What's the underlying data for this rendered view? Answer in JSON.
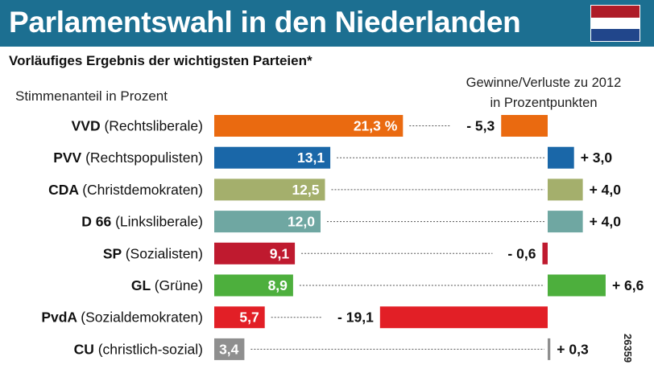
{
  "header": {
    "title": "Parlamentswahl in den Niederlanden",
    "flag_colors": [
      "#ae1c28",
      "#ffffff",
      "#21468b"
    ],
    "background": "#1c6f91"
  },
  "subtitle": "Vorläufiges Ergebnis der wichtigsten Parteien*",
  "left_header": "Stimmenanteil in Prozent",
  "right_header": {
    "line1": "Gewinne/Verluste zu 2012",
    "line2": "in Prozentpunkten"
  },
  "watermark": "26359",
  "chart_data": {
    "type": "bar",
    "title": "Parlamentswahl in den Niederlanden",
    "subtitle": "Vorläufiges Ergebnis der wichtigsten Parteien*",
    "xlabel": "",
    "ylabel": "",
    "categories": [
      "VVD",
      "PVV",
      "CDA",
      "D 66",
      "SP",
      "GL",
      "PvdA",
      "CU"
    ],
    "descriptions": [
      "(Rechtsliberale)",
      "(Rechtspopulisten)",
      "(Christdemokraten)",
      "(Linksliberale)",
      "(Sozialisten)",
      "(Grüne)",
      "(Sozialdemokraten)",
      "(christlich-sozial)"
    ],
    "colors": [
      "#ea6a10",
      "#1a67a8",
      "#a4af6c",
      "#6fa7a2",
      "#bf1a2f",
      "#4daf3d",
      "#e21f26",
      "#8f8f8f"
    ],
    "series": [
      {
        "name": "Stimmenanteil in Prozent",
        "values": [
          21.3,
          13.1,
          12.5,
          12.0,
          9.1,
          8.9,
          5.7,
          3.4
        ],
        "labels": [
          "21,3 %",
          "13,1",
          "12,5",
          "12,0",
          "9,1",
          "8,9",
          "5,7",
          "3,4"
        ]
      },
      {
        "name": "Gewinne/Verluste zu 2012 in Prozentpunkten",
        "values": [
          -5.3,
          3.0,
          4.0,
          4.0,
          -0.6,
          6.6,
          -19.1,
          0.3
        ],
        "labels": [
          "- 5,3",
          "+ 3,0",
          "+ 4,0",
          "+ 4,0",
          "- 0,6",
          "+ 6,6",
          "- 19,1",
          "+ 0,3"
        ]
      }
    ],
    "grid": false,
    "legend": "none"
  }
}
